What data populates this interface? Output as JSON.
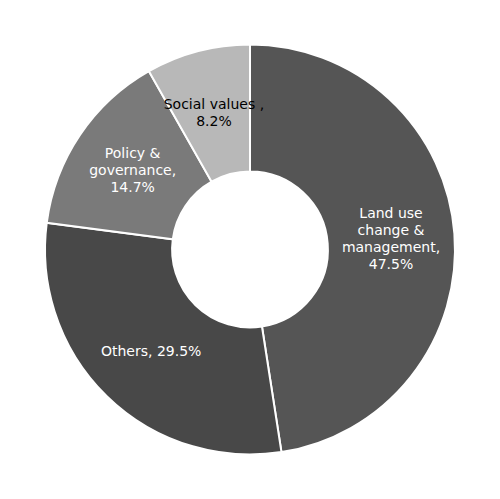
{
  "chart_data": {
    "type": "donut",
    "categories": [
      "Land use\nchange &\nmanagement,\n47.5%",
      "Others, 29.5%",
      "Policy &\ngovernance,\n14.7%",
      "Social values ,\n8.2%"
    ],
    "values": [
      47.5,
      29.5,
      14.7,
      8.2
    ],
    "colors": [
      "#555555",
      "#484848",
      "#7a7a7a",
      "#b8b8b8"
    ]
  }
}
